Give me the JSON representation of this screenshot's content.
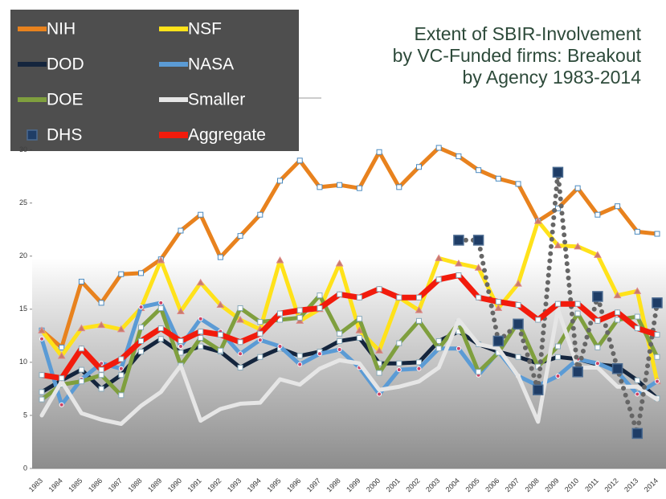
{
  "chart_data": {
    "type": "line",
    "title": [
      "Extent of SBIR-Involvement",
      "by VC-Funded firms: Breakout",
      "by Agency 1983-2014"
    ],
    "categories": [
      "1983",
      "1984",
      "1985",
      "1986",
      "1987",
      "1988",
      "1989",
      "1990",
      "1991",
      "1992",
      "1993",
      "1994",
      "1995",
      "1996",
      "1997",
      "1998",
      "1999",
      "2000",
      "2001",
      "2002",
      "2003",
      "2004",
      "2005",
      "2006",
      "2007",
      "2008",
      "2009",
      "2010",
      "2011",
      "2012",
      "2013",
      "2014"
    ],
    "ylim": [
      0,
      30.5
    ],
    "yticks": [
      0,
      5,
      10,
      15,
      20,
      25,
      30
    ],
    "legend": "upper left",
    "series": [
      {
        "name": "NIH",
        "color": "#e8821e",
        "values": [
          13.0,
          11.4,
          17.6,
          15.6,
          18.3,
          18.4,
          19.7,
          22.4,
          23.9,
          19.9,
          21.9,
          23.9,
          27.1,
          29.0,
          26.5,
          26.7,
          26.4,
          29.8,
          26.5,
          28.4,
          30.2,
          29.4,
          28.1,
          27.3,
          26.8,
          23.3,
          24.5,
          26.4,
          23.9,
          24.7,
          22.3,
          22.1
        ]
      },
      {
        "name": "NSF",
        "color": "#ffe21a",
        "values": [
          13.0,
          10.6,
          13.2,
          13.5,
          13.1,
          15.1,
          19.6,
          14.8,
          17.5,
          15.4,
          14.0,
          13.1,
          19.6,
          13.9,
          15.0,
          19.3,
          13.0,
          11.1,
          16.1,
          14.9,
          19.8,
          19.3,
          18.9,
          15.1,
          17.4,
          23.3,
          21.0,
          20.9,
          20.1,
          16.3,
          16.7,
          8.2
        ]
      },
      {
        "name": "DOD",
        "color": "#14253d",
        "values": [
          7.2,
          8.3,
          9.3,
          7.5,
          8.8,
          11.0,
          12.2,
          10.9,
          11.5,
          11.0,
          9.5,
          10.5,
          11.3,
          10.6,
          11.0,
          12.0,
          12.3,
          9.9,
          9.9,
          10.0,
          12.0,
          12.9,
          11.7,
          11.0,
          10.5,
          9.9,
          10.5,
          10.3,
          9.8,
          9.6,
          8.3,
          6.6
        ]
      },
      {
        "name": "NASA",
        "color": "#5b9bd5",
        "values": [
          12.2,
          6.0,
          8.4,
          9.9,
          9.4,
          15.2,
          15.6,
          11.5,
          14.1,
          12.9,
          10.8,
          12.1,
          11.5,
          9.8,
          10.8,
          11.2,
          9.5,
          7.0,
          9.3,
          9.4,
          11.3,
          11.3,
          8.8,
          11.0,
          8.7,
          7.8,
          8.7,
          10.3,
          9.9,
          9.1,
          7.0,
          8.2
        ]
      },
      {
        "name": "DOE",
        "color": "#7f9f3e",
        "values": [
          6.5,
          7.9,
          8.2,
          8.8,
          6.9,
          13.3,
          15.1,
          9.7,
          12.3,
          11.1,
          15.1,
          13.8,
          14.0,
          14.2,
          16.3,
          12.7,
          14.1,
          9.0,
          11.8,
          13.9,
          11.3,
          13.7,
          9.1,
          10.9,
          13.8,
          9.6,
          11.5,
          14.6,
          11.4,
          14.0,
          14.3,
          10.5
        ]
      },
      {
        "name": "Smaller",
        "color": "#e6e6e6",
        "values": [
          5.0,
          8.2,
          5.2,
          4.6,
          4.2,
          5.9,
          7.2,
          9.7,
          4.5,
          5.6,
          6.1,
          6.2,
          8.4,
          7.9,
          9.4,
          10.2,
          9.9,
          7.4,
          7.7,
          8.2,
          9.5,
          14.0,
          11.7,
          11.3,
          8.7,
          4.4,
          15.0,
          9.5,
          9.5,
          7.7,
          7.7,
          6.5
        ]
      },
      {
        "name": "DHS",
        "color": "#1f3d66",
        "values": [
          null,
          null,
          null,
          null,
          null,
          null,
          null,
          null,
          null,
          null,
          null,
          null,
          null,
          null,
          null,
          null,
          null,
          null,
          null,
          null,
          null,
          21.5,
          21.5,
          12.0,
          13.6,
          7.4,
          27.9,
          9.1,
          16.2,
          9.4,
          3.3,
          15.6
        ]
      },
      {
        "name": "Aggregate",
        "color": "#f21b0c",
        "values": [
          8.8,
          8.5,
          11.3,
          9.3,
          10.3,
          12.0,
          13.2,
          12.0,
          12.9,
          12.6,
          11.9,
          12.7,
          14.6,
          14.9,
          15.1,
          16.4,
          16.1,
          16.9,
          16.1,
          16.1,
          17.8,
          18.2,
          16.1,
          15.7,
          15.4,
          14.0,
          15.5,
          15.5,
          13.9,
          14.7,
          13.2,
          12.6
        ]
      }
    ]
  }
}
